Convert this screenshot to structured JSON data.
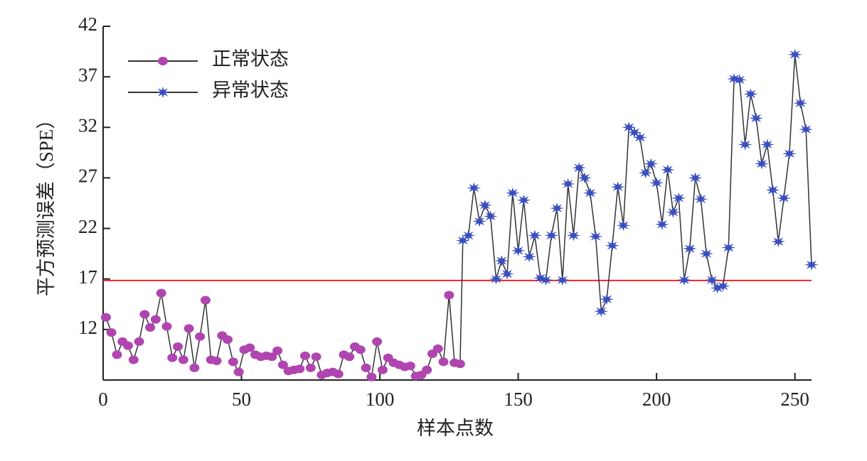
{
  "chart_data": {
    "type": "line",
    "xlabel": "样本点数",
    "ylabel": "平方预测误差（SPE）",
    "xlim": [
      0,
      256
    ],
    "xticks": [
      0,
      50,
      100,
      150,
      200,
      250
    ],
    "ylim": [
      7,
      42
    ],
    "yticks": [
      12,
      17,
      22,
      27,
      32,
      37,
      42
    ],
    "threshold": 16.85,
    "threshold_color": "#e8262b",
    "line_color": "#333333",
    "legend": "upper left",
    "grid": false,
    "series": [
      {
        "name": "正常状态",
        "color": "#b045b0",
        "marker": "circle",
        "x": [
          1,
          3,
          5,
          7,
          9,
          11,
          13,
          15,
          17,
          19,
          21,
          23,
          25,
          27,
          29,
          31,
          33,
          35,
          37,
          39,
          41,
          43,
          45,
          47,
          49,
          51,
          53,
          55,
          57,
          59,
          61,
          63,
          65,
          67,
          69,
          71,
          73,
          75,
          77,
          79,
          81,
          83,
          85,
          87,
          89,
          91,
          93,
          95,
          97,
          99,
          101,
          103,
          105,
          107,
          109,
          111,
          113,
          115,
          117,
          119,
          121,
          123,
          125,
          127,
          129
        ],
        "values": [
          13.2,
          11.7,
          9.5,
          10.8,
          10.4,
          9.0,
          10.8,
          13.5,
          12.2,
          13.0,
          15.6,
          12.3,
          9.2,
          10.3,
          9.0,
          12.1,
          8.2,
          11.3,
          14.9,
          9.0,
          8.9,
          11.4,
          11.0,
          8.8,
          7.8,
          10.0,
          10.2,
          9.5,
          9.3,
          9.4,
          9.3,
          9.9,
          8.5,
          7.9,
          8.0,
          8.1,
          9.4,
          8.2,
          9.3,
          7.5,
          7.7,
          7.8,
          7.6,
          9.5,
          9.3,
          10.3,
          10.0,
          8.2,
          7.3,
          10.8,
          8.0,
          9.2,
          8.7,
          8.5,
          8.3,
          8.4,
          7.4,
          7.5,
          8.0,
          9.6,
          10.1,
          8.8,
          15.4,
          8.7,
          8.6
        ]
      },
      {
        "name": "异常状态",
        "color": "#3a4fbf",
        "marker": "asterisk",
        "x": [
          130,
          132,
          134,
          136,
          138,
          140,
          142,
          144,
          146,
          148,
          150,
          152,
          154,
          156,
          158,
          160,
          162,
          164,
          166,
          168,
          170,
          172,
          174,
          176,
          178,
          180,
          182,
          184,
          186,
          188,
          190,
          192,
          194,
          196,
          198,
          200,
          202,
          204,
          206,
          208,
          210,
          212,
          214,
          216,
          218,
          220,
          222,
          224,
          226,
          228,
          230,
          232,
          234,
          236,
          238,
          240,
          242,
          244,
          246,
          248,
          250,
          252,
          254,
          256
        ],
        "values": [
          20.8,
          21.3,
          26.0,
          22.7,
          24.3,
          23.2,
          17.0,
          18.8,
          17.5,
          25.5,
          19.8,
          24.8,
          19.2,
          21.3,
          17.1,
          16.9,
          21.3,
          24.0,
          16.9,
          26.4,
          21.3,
          28.0,
          27.0,
          25.5,
          21.2,
          13.8,
          15.0,
          20.3,
          26.1,
          22.3,
          32.0,
          31.5,
          31.0,
          27.5,
          28.4,
          26.5,
          22.4,
          27.8,
          23.6,
          25.0,
          16.9,
          20.0,
          27.0,
          24.9,
          19.5,
          16.9,
          16.1,
          16.3,
          20.1,
          36.8,
          36.7,
          30.3,
          35.3,
          32.9,
          28.4,
          30.3,
          25.8,
          20.7,
          25.0,
          29.4,
          39.2,
          34.4,
          31.8,
          18.4
        ]
      }
    ]
  }
}
